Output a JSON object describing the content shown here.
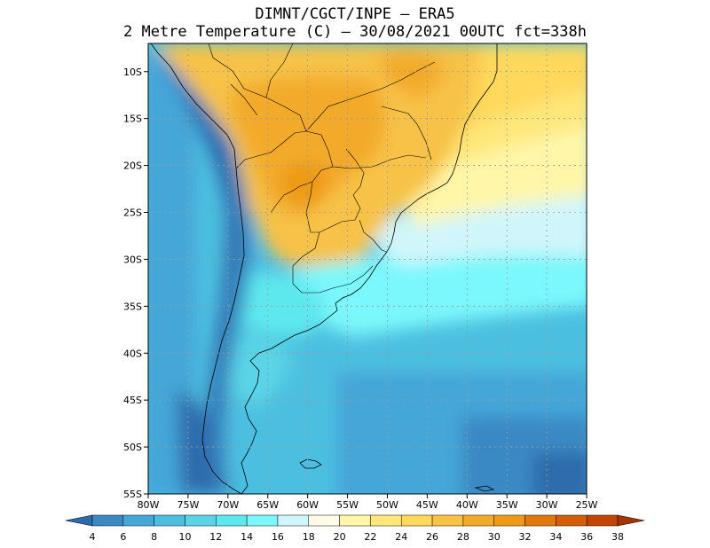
{
  "header": {
    "line1": "DIMNT/CGCT/INPE –  ERA5",
    "line2": "2 Metre Temperature (C) –  30/08/2021 00UTC fct=338h"
  },
  "map": {
    "lon_range": [
      -80,
      -25
    ],
    "lat_range": [
      -55,
      -7
    ],
    "lat_ticks": [
      "10S",
      "15S",
      "20S",
      "25S",
      "30S",
      "35S",
      "40S",
      "45S",
      "50S",
      "55S"
    ],
    "lat_values": [
      -10,
      -15,
      -20,
      -25,
      -30,
      -35,
      -40,
      -45,
      -50,
      -55
    ],
    "lon_ticks": [
      "80W",
      "75W",
      "70W",
      "65W",
      "60W",
      "55W",
      "50W",
      "45W",
      "40W",
      "35W",
      "30W",
      "25W"
    ],
    "lon_values": [
      -80,
      -75,
      -70,
      -65,
      -60,
      -55,
      -50,
      -45,
      -40,
      -35,
      -30,
      -25
    ]
  },
  "colorbar": {
    "labels": [
      "4",
      "6",
      "8",
      "10",
      "12",
      "14",
      "16",
      "18",
      "20",
      "22",
      "24",
      "26",
      "28",
      "30",
      "32",
      "34",
      "36",
      "38"
    ],
    "colors": [
      "#2d6cac",
      "#3a89c4",
      "#45a6d8",
      "#4cbfe0",
      "#5ad4e6",
      "#5de8ee",
      "#7af8fb",
      "#d0f6fb",
      "#fffbe8",
      "#fff6a8",
      "#ffe77a",
      "#ffd85c",
      "#f7c246",
      "#f3aa2a",
      "#ee9a16",
      "#e1780e",
      "#d45e08",
      "#c24602",
      "#a83200"
    ]
  }
}
